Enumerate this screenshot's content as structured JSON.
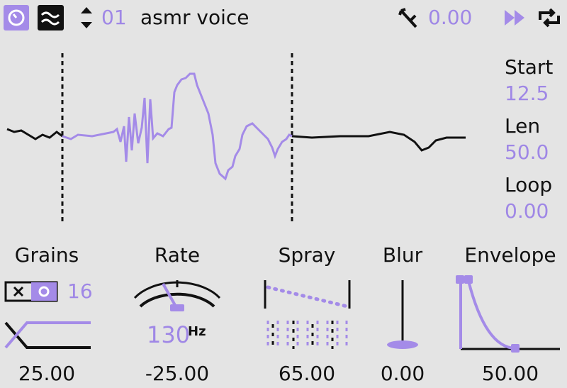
{
  "header": {
    "preset_number": "01",
    "preset_name": "asmr voice",
    "offset": "0.00"
  },
  "sample": {
    "start_label": "Start",
    "start": "12.5",
    "len_label": "Len",
    "len": "50.0",
    "loop_label": "Loop",
    "loop": "0.00"
  },
  "controls": [
    {
      "label": "Grains",
      "count": "16",
      "value": "25.00"
    },
    {
      "label": "Rate",
      "rate": "130",
      "unit": "Hz",
      "value": "-25.00"
    },
    {
      "label": "Spray",
      "value": "65.00"
    },
    {
      "label": "Blur",
      "value": "0.00"
    },
    {
      "label": "Envelope",
      "value": "50.00"
    }
  ]
}
